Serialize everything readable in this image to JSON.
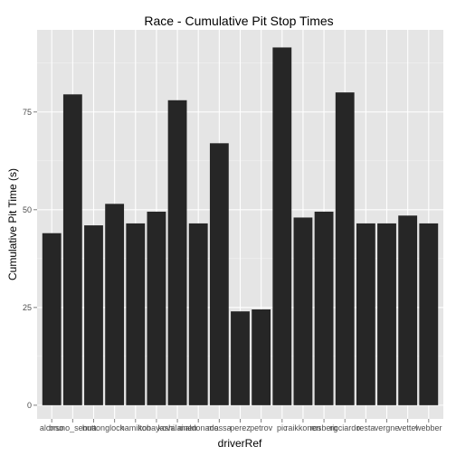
{
  "chart_data": {
    "type": "bar",
    "title": "Race - Cumulative Pit Stop Times",
    "xlabel": "driverRef",
    "ylabel": "Cumulative Pit Time (s)",
    "ylim": [
      -3.5,
      96
    ],
    "yticks": [
      0,
      25,
      50,
      75
    ],
    "grid": true,
    "bar_color": "#262626",
    "panel_color": "#e5e5e5",
    "categories": [
      "alonso",
      "bruno_senna",
      "button",
      "glock",
      "hamilton",
      "kobayashi",
      "kovalainen",
      "maldonado",
      "massa",
      "perez",
      "petrov",
      "pic",
      "raikkonen",
      "rosberg",
      "ricciardo",
      "resta",
      "vergne",
      "vettel",
      "webber"
    ],
    "tick_labels": [
      "alonso",
      "bruno_senna",
      "button",
      "glock",
      "hamilton",
      "kobayashi",
      "kovalainen",
      "maldonado",
      "massa",
      "perez",
      "petrov",
      "pic",
      "raikkonen",
      "rosberg",
      "ricciardo",
      "resta",
      "vergne",
      "vettel",
      "webber"
    ],
    "values": [
      44,
      79.5,
      46,
      51.5,
      46.5,
      49.5,
      78,
      46.5,
      67,
      24,
      24.5,
      91.5,
      48,
      49.5,
      80,
      46.5,
      46.5,
      48.5,
      46.5
    ]
  }
}
